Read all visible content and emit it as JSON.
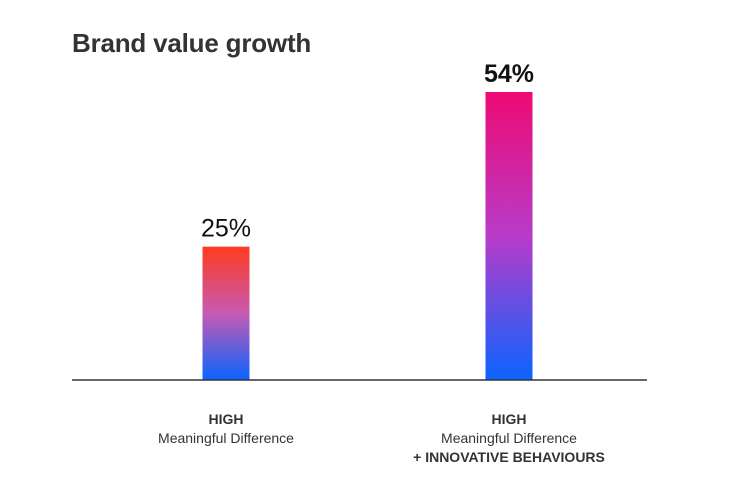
{
  "chart_data": {
    "type": "bar",
    "title": "Brand value growth",
    "categories": [
      [
        "HIGH",
        "Meaningful Difference"
      ],
      [
        "HIGH",
        "Meaningful Difference",
        "+ INNOVATIVE BEHAVIOURS"
      ]
    ],
    "values": [
      25,
      54
    ],
    "value_labels": [
      "25%",
      "54%"
    ],
    "ylim": [
      0,
      54
    ],
    "grid": false,
    "legend": "none",
    "bars": [
      {
        "emphasized": false,
        "gradient_top": "#ff3b1f",
        "gradient_mid": "#c65ab2",
        "gradient_bottom": "#0a64ff"
      },
      {
        "emphasized": true,
        "gradient_top": "#ee0a73",
        "gradient_mid": "#b83bc9",
        "gradient_bottom": "#0a64ff"
      }
    ],
    "colors": {
      "title": "#333333",
      "axis": "#333333",
      "text": "#333333",
      "value_text": "#111111"
    }
  }
}
